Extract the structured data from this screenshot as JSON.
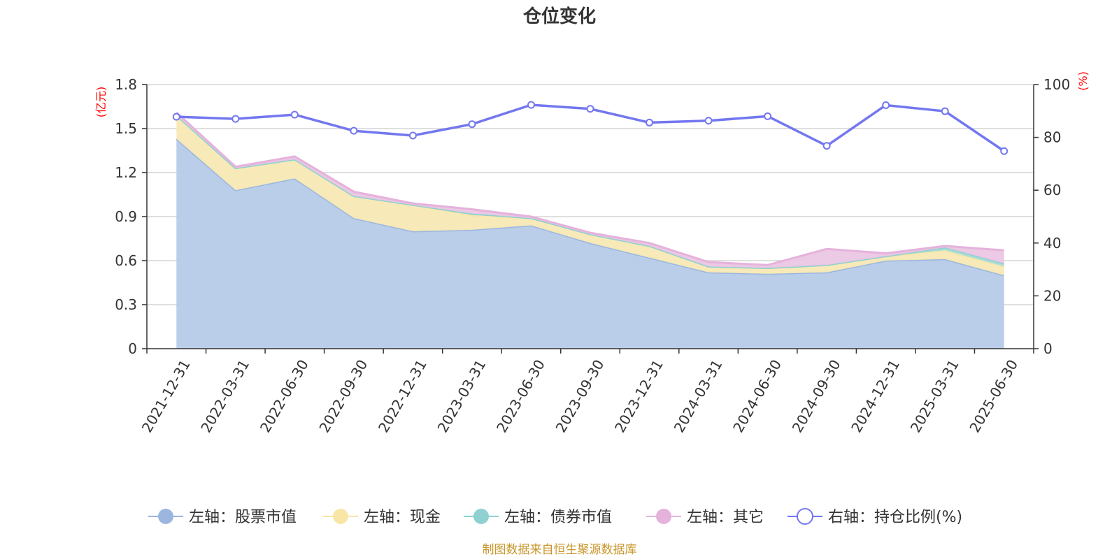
{
  "chart_data": {
    "type": "area",
    "title": "仓位变化",
    "left_axis_unit": "(亿元)",
    "right_axis_unit": "(%)",
    "categories": [
      "2021-12-31",
      "2022-03-31",
      "2022-06-30",
      "2022-09-30",
      "2022-12-31",
      "2023-03-31",
      "2023-06-30",
      "2023-09-30",
      "2023-12-31",
      "2024-03-31",
      "2024-06-30",
      "2024-09-30",
      "2024-12-31",
      "2025-03-31",
      "2025-06-30"
    ],
    "left_axis": {
      "min": 0,
      "max": 1.8,
      "ticks": [
        0,
        0.3,
        0.6,
        0.9,
        1.2,
        1.5,
        1.8
      ],
      "tick_labels": [
        "0",
        "0.3",
        "0.6",
        "0.9",
        "1.2",
        "1.5",
        "1.8"
      ]
    },
    "right_axis": {
      "min": 0,
      "max": 100,
      "ticks": [
        0,
        20,
        40,
        60,
        80,
        100
      ],
      "tick_labels": [
        "0",
        "20",
        "40",
        "60",
        "80",
        "100"
      ]
    },
    "stacked": true,
    "grid": true,
    "legend_position": "bottom",
    "series": [
      {
        "name": "左轴：股票市值",
        "axis": "left",
        "kind": "area",
        "color": "#9bb7e0",
        "fill": "#b7cbe8",
        "values": [
          1.43,
          1.08,
          1.16,
          0.89,
          0.8,
          0.81,
          0.84,
          0.72,
          0.62,
          0.52,
          0.51,
          0.52,
          0.6,
          0.61,
          0.5
        ]
      },
      {
        "name": "左轴：现金",
        "axis": "left",
        "kind": "area",
        "color": "#f7e6a6",
        "fill": "#f8e9b4",
        "values": [
          0.16,
          0.15,
          0.13,
          0.15,
          0.18,
          0.1,
          0.05,
          0.06,
          0.08,
          0.04,
          0.04,
          0.05,
          0.03,
          0.06,
          0.06
        ]
      },
      {
        "name": "左轴：债券市值",
        "axis": "left",
        "kind": "area",
        "color": "#8ed1d0",
        "fill": "#a9dcd9",
        "values": [
          0,
          0,
          0,
          0,
          0,
          0.01,
          0,
          0,
          0,
          0,
          0,
          0,
          0,
          0.02,
          0.02
        ]
      },
      {
        "name": "左轴：其它",
        "axis": "left",
        "kind": "area",
        "color": "#e5b2dc",
        "fill": "#ebc6e3",
        "values": [
          0.02,
          0.01,
          0.02,
          0.03,
          0.01,
          0.03,
          0.01,
          0.01,
          0.02,
          0.03,
          0.02,
          0.11,
          0.02,
          0.01,
          0.09
        ]
      },
      {
        "name": "右轴：持仓比例(%)",
        "axis": "right",
        "kind": "line",
        "color": "#7377ef",
        "values": [
          87.8,
          87.0,
          88.6,
          82.5,
          80.7,
          85.0,
          92.3,
          90.8,
          85.6,
          86.3,
          88.0,
          76.8,
          92.2,
          89.9,
          74.8
        ]
      }
    ],
    "source": "制图数据来自恒生聚源数据库"
  }
}
